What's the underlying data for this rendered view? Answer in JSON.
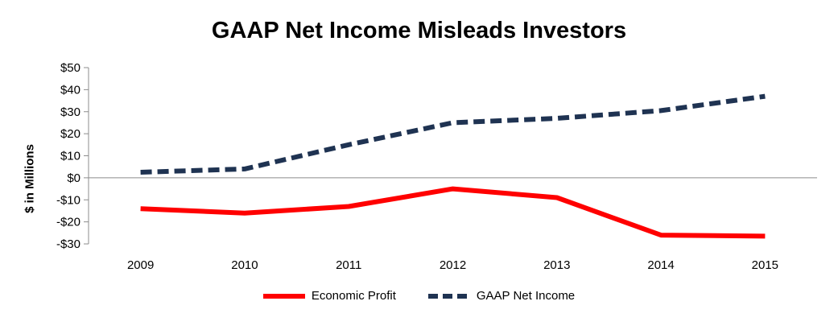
{
  "chart_data": {
    "type": "line",
    "title": "GAAP Net Income Misleads Investors",
    "xlabel": "",
    "ylabel": "$ in Millions",
    "categories": [
      "2009",
      "2010",
      "2011",
      "2012",
      "2013",
      "2014",
      "2015"
    ],
    "ylim": [
      -30,
      50
    ],
    "yticks": [
      50,
      40,
      30,
      20,
      10,
      0,
      -10,
      -20,
      -30
    ],
    "ytick_labels": [
      "$50",
      "$40",
      "$30",
      "$20",
      "$10",
      "$0",
      "-$10",
      "-$20",
      "-$30"
    ],
    "grid": false,
    "legend_position": "bottom",
    "series": [
      {
        "name": "Economic Profit",
        "values": [
          -14,
          -16,
          -13,
          -5,
          -9,
          -26,
          -26.5
        ],
        "color": "#ff0000",
        "style": "solid"
      },
      {
        "name": "GAAP Net Income",
        "values": [
          2.5,
          4,
          15,
          25,
          27,
          30.5,
          37
        ],
        "color": "#1f3352",
        "style": "dashed"
      }
    ]
  }
}
